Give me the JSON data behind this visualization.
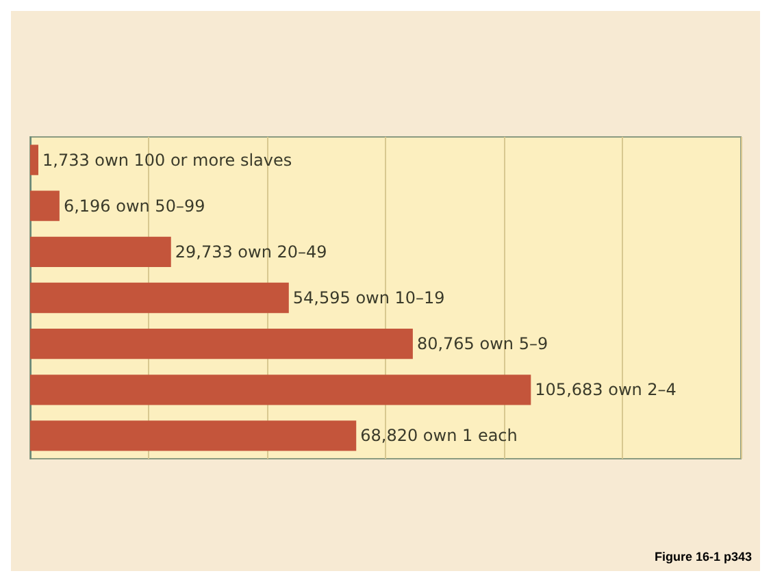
{
  "chart_data": {
    "type": "bar",
    "orientation": "horizontal",
    "categories": [
      null,
      null,
      null,
      null,
      null,
      null,
      null
    ],
    "values": [
      1733,
      6196,
      29733,
      54595,
      80765,
      105683,
      68820
    ],
    "value_labels": [
      "1,733 own 100 or more slaves",
      "6,196 own 50–99",
      "29,733 own 20–49",
      "54,595 own 10–19",
      "80,765 own 5–9",
      "105,683 own 2–4",
      "68,820 own 1 each"
    ],
    "color": "#c4553b",
    "xlim": [
      0,
      150000
    ],
    "xticks": [
      {
        "value": 0,
        "label": null
      },
      {
        "value": 25000,
        "label": null
      },
      {
        "value": 50000,
        "label": null
      },
      {
        "value": 75000,
        "label": null
      },
      {
        "value": 100000,
        "label": null
      },
      {
        "value": 125000,
        "label": null
      },
      {
        "value": 150000,
        "label": null
      }
    ],
    "grid": "x",
    "annotations": [
      "Figure 16-1 p343"
    ]
  }
}
